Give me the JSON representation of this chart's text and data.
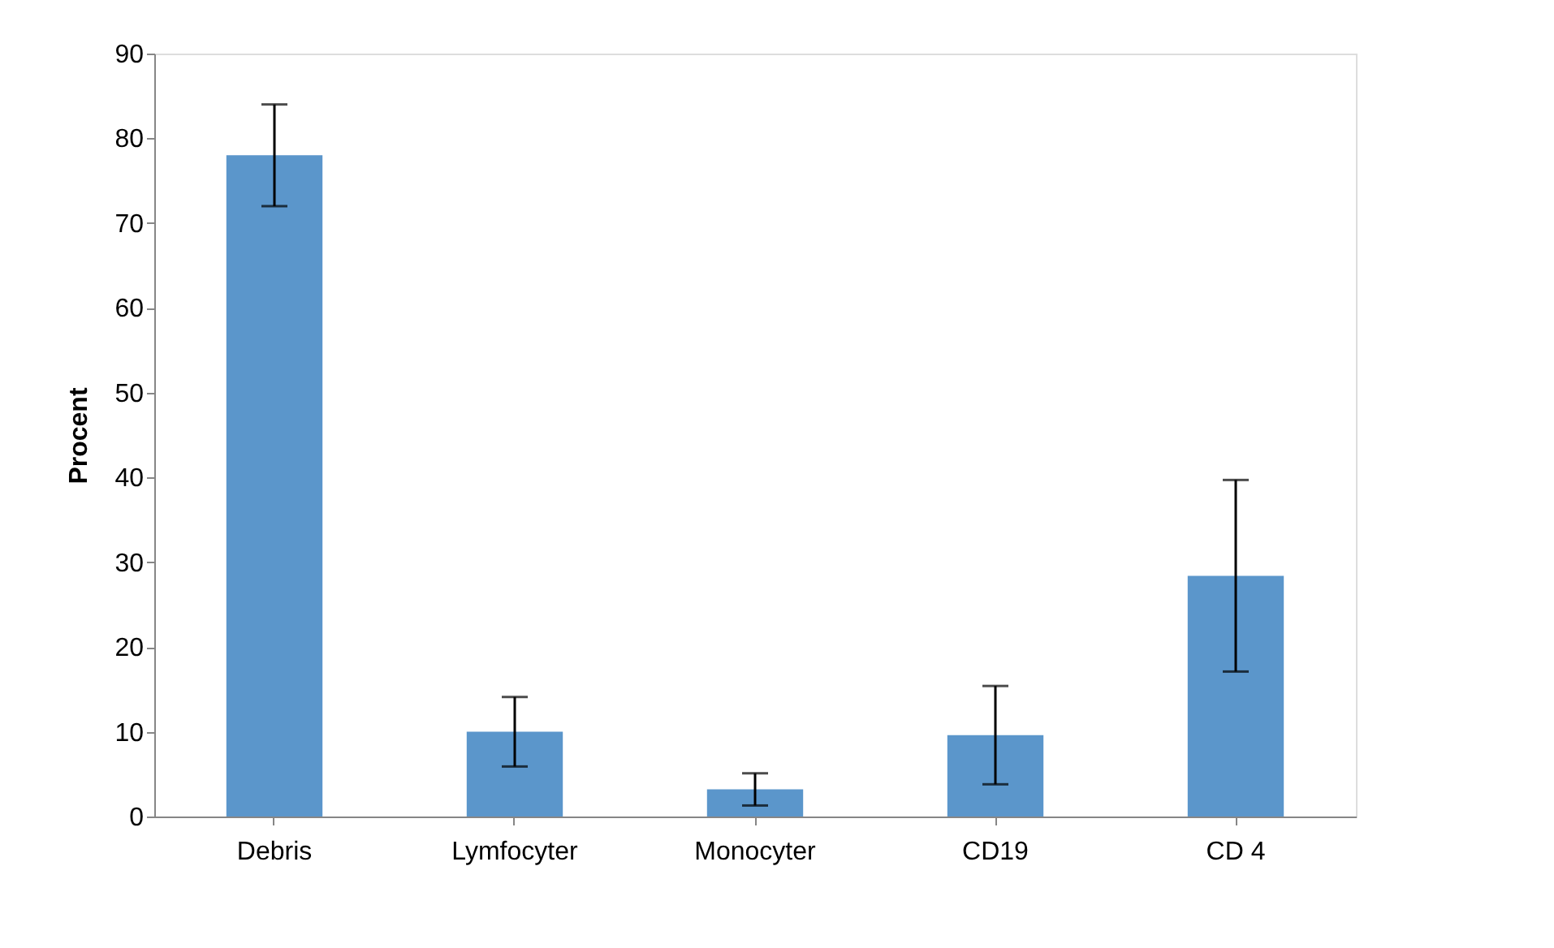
{
  "chart_data": {
    "type": "bar",
    "ylabel": "Procent",
    "categories": [
      "Debris",
      "Lymfocyter",
      "Monocyter",
      "CD19",
      "CD 4"
    ],
    "values": [
      78,
      10,
      3.2,
      9.6,
      28.4
    ],
    "errors": [
      6,
      4.1,
      1.9,
      5.8,
      11.3
    ],
    "color": "#5b96cb",
    "ylim": [
      0,
      90
    ],
    "yticks": [
      0,
      10,
      20,
      30,
      40,
      50,
      60,
      70,
      80,
      90
    ],
    "grid": false
  }
}
